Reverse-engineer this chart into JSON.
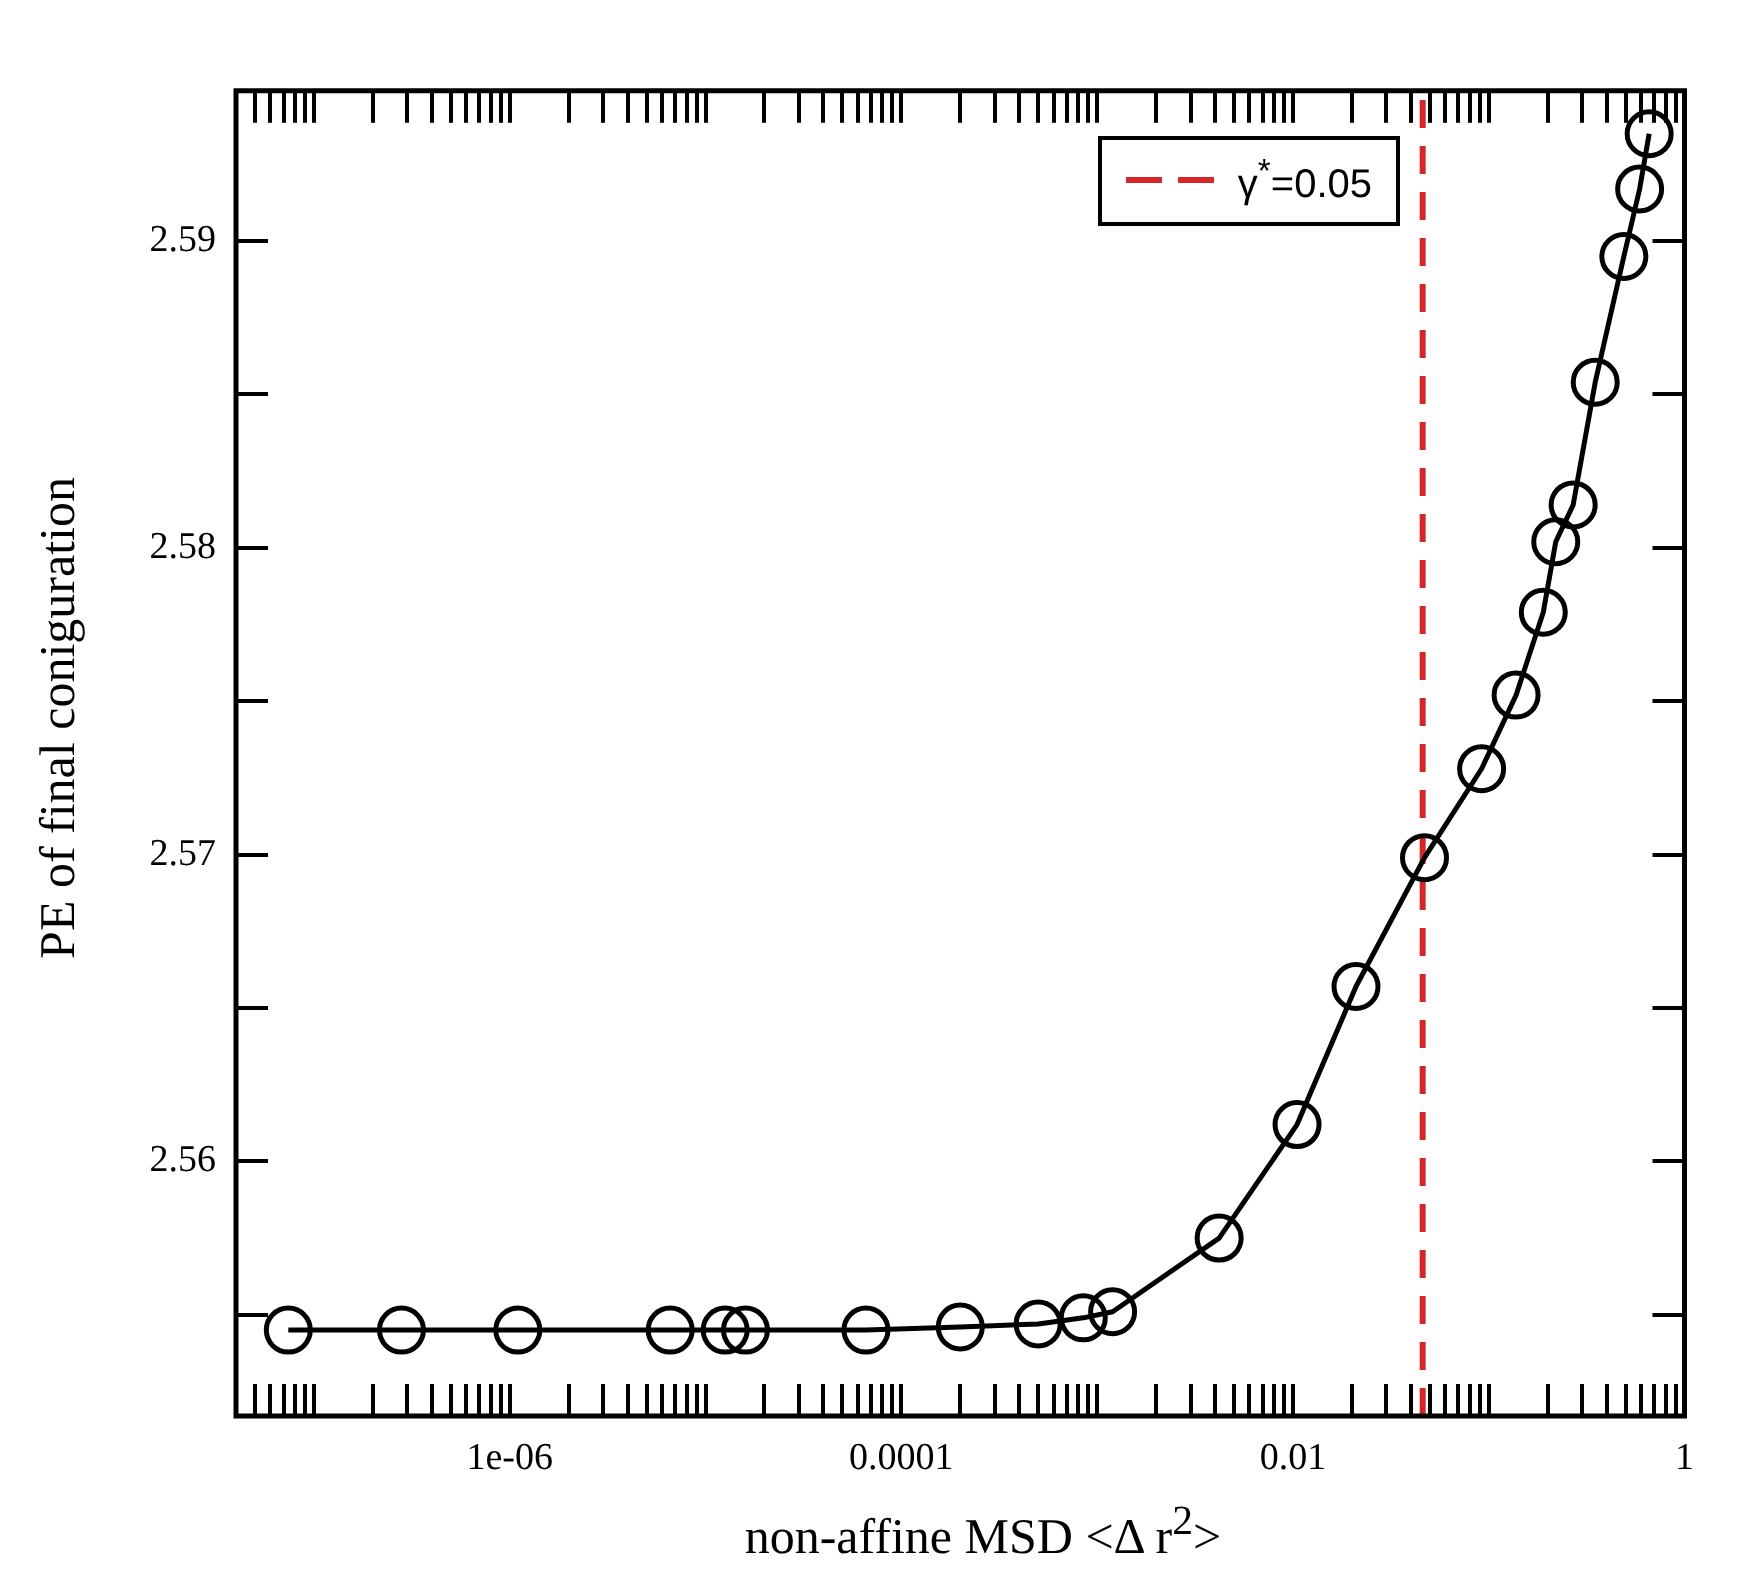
{
  "chart_data": {
    "type": "line",
    "xlabel": "non-affine MSD <Δ r$^{2}$>",
    "ylabel": "PE of final coniguration",
    "log": "x",
    "grid": false,
    "legend": "top right",
    "marker": "circle",
    "line_style": "solid",
    "xlim": [
      4e-08,
      1
    ],
    "ylim": [
      2.5517,
      2.5949
    ],
    "xticks": [
      {
        "value": 5e-08,
        "label": null
      },
      {
        "value": 6e-08,
        "label": null
      },
      {
        "value": 7e-08,
        "label": null
      },
      {
        "value": 8e-08,
        "label": null
      },
      {
        "value": 9e-08,
        "label": null
      },
      {
        "value": 1e-07,
        "label": null
      },
      {
        "value": 2e-07,
        "label": null
      },
      {
        "value": 3e-07,
        "label": null
      },
      {
        "value": 4e-07,
        "label": null
      },
      {
        "value": 5e-07,
        "label": null
      },
      {
        "value": 6e-07,
        "label": null
      },
      {
        "value": 7e-07,
        "label": null
      },
      {
        "value": 8e-07,
        "label": null
      },
      {
        "value": 9e-07,
        "label": null
      },
      {
        "value": 1e-06,
        "label": "1e-06"
      },
      {
        "value": 2e-06,
        "label": null
      },
      {
        "value": 3e-06,
        "label": null
      },
      {
        "value": 4e-06,
        "label": null
      },
      {
        "value": 5e-06,
        "label": null
      },
      {
        "value": 6e-06,
        "label": null
      },
      {
        "value": 7e-06,
        "label": null
      },
      {
        "value": 8e-06,
        "label": null
      },
      {
        "value": 9e-06,
        "label": null
      },
      {
        "value": 1e-05,
        "label": null
      },
      {
        "value": 2e-05,
        "label": null
      },
      {
        "value": 3e-05,
        "label": null
      },
      {
        "value": 4e-05,
        "label": null
      },
      {
        "value": 5e-05,
        "label": null
      },
      {
        "value": 6e-05,
        "label": null
      },
      {
        "value": 7e-05,
        "label": null
      },
      {
        "value": 8e-05,
        "label": null
      },
      {
        "value": 9e-05,
        "label": null
      },
      {
        "value": 0.0001,
        "label": "0.0001"
      },
      {
        "value": 0.0002,
        "label": null
      },
      {
        "value": 0.0003,
        "label": null
      },
      {
        "value": 0.0004,
        "label": null
      },
      {
        "value": 0.0005,
        "label": null
      },
      {
        "value": 0.0006,
        "label": null
      },
      {
        "value": 0.0007,
        "label": null
      },
      {
        "value": 0.0008,
        "label": null
      },
      {
        "value": 0.0009,
        "label": null
      },
      {
        "value": 0.001,
        "label": null
      },
      {
        "value": 0.002,
        "label": null
      },
      {
        "value": 0.003,
        "label": null
      },
      {
        "value": 0.004,
        "label": null
      },
      {
        "value": 0.005,
        "label": null
      },
      {
        "value": 0.006,
        "label": null
      },
      {
        "value": 0.007,
        "label": null
      },
      {
        "value": 0.008,
        "label": null
      },
      {
        "value": 0.009,
        "label": null
      },
      {
        "value": 0.01,
        "label": "0.01"
      },
      {
        "value": 0.02,
        "label": null
      },
      {
        "value": 0.03,
        "label": null
      },
      {
        "value": 0.04,
        "label": null
      },
      {
        "value": 0.05,
        "label": null
      },
      {
        "value": 0.06,
        "label": null
      },
      {
        "value": 0.07,
        "label": null
      },
      {
        "value": 0.08,
        "label": null
      },
      {
        "value": 0.09,
        "label": null
      },
      {
        "value": 0.1,
        "label": null
      },
      {
        "value": 0.2,
        "label": null
      },
      {
        "value": 0.3,
        "label": null
      },
      {
        "value": 0.4,
        "label": null
      },
      {
        "value": 0.5,
        "label": null
      },
      {
        "value": 0.6,
        "label": null
      },
      {
        "value": 0.7,
        "label": null
      },
      {
        "value": 0.8,
        "label": null
      },
      {
        "value": 0.9,
        "label": null
      },
      {
        "value": 1,
        "label": "1"
      }
    ],
    "yticks": [
      {
        "value": 2.555,
        "label": null
      },
      2.56,
      {
        "value": 2.565,
        "label": null
      },
      2.57,
      {
        "value": 2.575,
        "label": null
      },
      2.58,
      {
        "value": 2.585,
        "label": null
      },
      2.59
    ],
    "ref_lines": [
      {
        "axis": "x",
        "value": 0.046,
        "label": "γ$^{*}$=0.05",
        "color": "#d62728",
        "line_style": "dashed"
      }
    ],
    "series": [
      {
        "color": "#000000",
        "x": [
          7.4e-08,
          2.8e-07,
          1.1e-06,
          6.6e-06,
          1.26e-05,
          1.6e-05,
          6.6e-05,
          0.0002,
          0.0005,
          0.00085,
          0.0012,
          0.0042,
          0.0105,
          0.021,
          0.047,
          0.092,
          0.138,
          0.19,
          0.22,
          0.27,
          0.35,
          0.49,
          0.59,
          0.66
        ],
        "values": [
          2.5545,
          2.5545,
          2.5545,
          2.5545,
          2.5545,
          2.5545,
          2.5545,
          2.5546,
          2.5547,
          2.5549,
          2.5551,
          2.5575,
          2.5612,
          2.5657,
          2.5699,
          2.5728,
          2.5752,
          2.5779,
          2.5802,
          2.5814,
          2.5854,
          2.5895,
          2.5917,
          2.5935
        ]
      }
    ]
  }
}
